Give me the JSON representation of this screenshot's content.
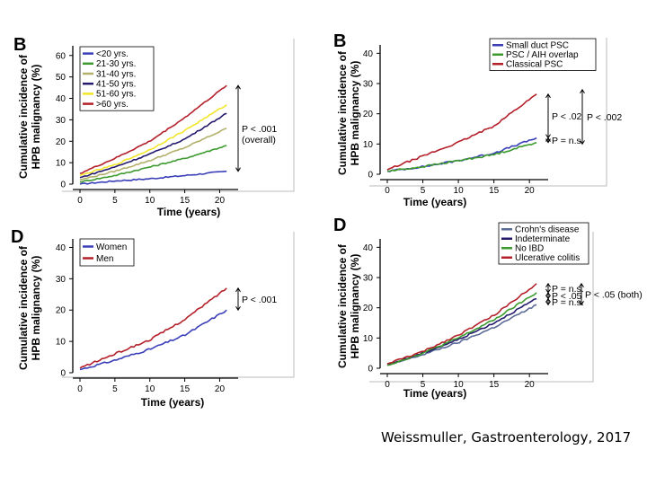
{
  "caption": "Weissmuller, Gastroenterology, 2017",
  "colors": {
    "blue": "#3a3fb8",
    "green": "#3c9a2e",
    "olive": "#b2b06a",
    "yellow": "#f2e62a",
    "navy": "#241a6e",
    "red": "#b3202a",
    "slate": "#5b6a96",
    "axis": "#000000"
  },
  "chart_data": [
    {
      "id": "age",
      "type": "line",
      "panel_letter": "B",
      "xlabel": "Time (years)",
      "ylabel": [
        "Cumulative incidence of",
        "HPB malignancy (%)"
      ],
      "xlim": [
        0,
        22
      ],
      "ylim": [
        0,
        62
      ],
      "xticks": [
        0,
        5,
        10,
        15,
        20
      ],
      "yticks": [
        0,
        10,
        20,
        30,
        40,
        50,
        60
      ],
      "legend_position": "top-left",
      "series": [
        {
          "name": "<20 yrs.",
          "color": "#3a3fb8",
          "x": [
            0,
            5,
            10,
            15,
            21
          ],
          "y": [
            0,
            1.5,
            2.5,
            4,
            6
          ]
        },
        {
          "name": "21-30 yrs.",
          "color": "#3c9a2e",
          "x": [
            0,
            5,
            10,
            15,
            21
          ],
          "y": [
            1,
            4,
            8,
            12,
            18
          ]
        },
        {
          "name": "31-40 yrs.",
          "color": "#b2b06a",
          "x": [
            0,
            5,
            10,
            15,
            21
          ],
          "y": [
            2,
            6,
            11,
            17,
            26
          ]
        },
        {
          "name": "41-50 yrs.",
          "color": "#241a6e",
          "x": [
            0,
            5,
            10,
            15,
            21
          ],
          "y": [
            3,
            8,
            14,
            21,
            33
          ]
        },
        {
          "name": "51-60 yrs.",
          "color": "#f2e62a",
          "x": [
            0,
            5,
            10,
            15,
            21
          ],
          "y": [
            4,
            9,
            16,
            25,
            37
          ]
        },
        {
          "name": ">60 yrs.",
          "color": "#b3202a",
          "x": [
            0,
            5,
            10,
            15,
            21
          ],
          "y": [
            5,
            12,
            20,
            31,
            46
          ]
        }
      ],
      "annotations": [
        {
          "text": "P < .001",
          "text2": "(overall)",
          "y_from": 46,
          "y_to": 6
        }
      ]
    },
    {
      "id": "psc",
      "type": "line",
      "panel_letter": "B",
      "xlabel": "Time (years)",
      "ylabel": [
        "Cumulative incidence of",
        "HPB malignancy (%)"
      ],
      "xlim": [
        0,
        22
      ],
      "ylim": [
        0,
        41
      ],
      "xticks": [
        0,
        5,
        10,
        15,
        20
      ],
      "yticks": [
        0,
        10,
        20,
        30,
        40
      ],
      "legend_position": "top-right",
      "series": [
        {
          "name": "Small duct PSC",
          "color": "#3a3fb8",
          "x": [
            0,
            5,
            10,
            15,
            21
          ],
          "y": [
            1,
            2.5,
            4.5,
            7,
            12
          ]
        },
        {
          "name": "PSC / AIH overlap",
          "color": "#3c9a2e",
          "x": [
            0,
            5,
            10,
            15,
            21
          ],
          "y": [
            1,
            2.5,
            4.5,
            6.5,
            10.5
          ]
        },
        {
          "name": "Classical PSC",
          "color": "#b3202a",
          "x": [
            0,
            5,
            10,
            15,
            21
          ],
          "y": [
            1.5,
            6,
            10.5,
            16,
            26.5
          ]
        }
      ],
      "annotations": [
        {
          "text": "P < .02",
          "y_from": 26.5,
          "y_to": 12
        },
        {
          "text": "P = n.s.",
          "y_from": 12,
          "y_to": 10.5
        },
        {
          "text": "P < .002",
          "y_from": 28,
          "y_to": 10
        }
      ]
    },
    {
      "id": "sex",
      "type": "line",
      "panel_letter": "D",
      "xlabel": "Time (years)",
      "ylabel": [
        "Cumulative incidence of",
        "HPB malignancy (%)"
      ],
      "xlim": [
        0,
        22
      ],
      "ylim": [
        0,
        41
      ],
      "xticks": [
        0,
        5,
        10,
        15,
        20
      ],
      "yticks": [
        0,
        10,
        20,
        30,
        40
      ],
      "legend_position": "top-left",
      "series": [
        {
          "name": "Women",
          "color": "#3a3fb8",
          "x": [
            0,
            5,
            10,
            15,
            21
          ],
          "y": [
            1,
            4,
            7.5,
            12,
            20
          ]
        },
        {
          "name": "Men",
          "color": "#b3202a",
          "x": [
            0,
            5,
            10,
            15,
            21
          ],
          "y": [
            1.5,
            6,
            10.5,
            17,
            27
          ]
        }
      ],
      "annotations": [
        {
          "text": "P < .001",
          "y_from": 27,
          "y_to": 20
        }
      ]
    },
    {
      "id": "ibd",
      "type": "line",
      "panel_letter": "D",
      "xlabel": "Time (years)",
      "ylabel": [
        "Cumulative incidence of",
        "HPB malignancy (%)"
      ],
      "xlim": [
        0,
        22
      ],
      "ylim": [
        0,
        41
      ],
      "xticks": [
        0,
        5,
        10,
        15,
        20
      ],
      "yticks": [
        0,
        10,
        20,
        30,
        40
      ],
      "legend_position": "top-right",
      "series": [
        {
          "name": "Crohn's disease",
          "color": "#5b6a96",
          "x": [
            0,
            5,
            10,
            15,
            21
          ],
          "y": [
            1,
            4.5,
            8.5,
            13.5,
            21
          ]
        },
        {
          "name": "Indeterminate",
          "color": "#241a6e",
          "x": [
            0,
            5,
            10,
            15,
            21
          ],
          "y": [
            1,
            5,
            9.5,
            15,
            23
          ]
        },
        {
          "name": "No IBD",
          "color": "#3c9a2e",
          "x": [
            0,
            5,
            10,
            15,
            21
          ],
          "y": [
            1,
            5,
            10,
            16,
            25
          ]
        },
        {
          "name": "Ulcerative colitis",
          "color": "#b3202a",
          "x": [
            0,
            5,
            10,
            15,
            21
          ],
          "y": [
            1.5,
            5.5,
            11,
            17.5,
            28
          ]
        }
      ],
      "annotations": [
        {
          "text": "P = n.s.",
          "y_from": 28,
          "y_to": 25
        },
        {
          "text": "P < .05",
          "y_from": 25,
          "y_to": 23
        },
        {
          "text": "P = n.s.",
          "y_from": 23,
          "y_to": 21
        },
        {
          "text": "P < .05 (both)",
          "y_from": 28,
          "y_to": 21
        }
      ]
    }
  ]
}
